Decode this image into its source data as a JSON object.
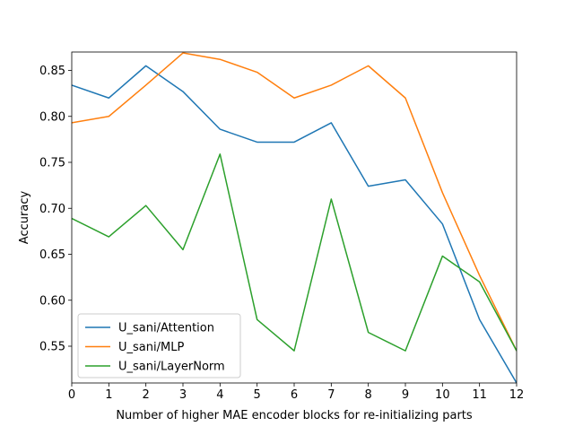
{
  "chart_data": {
    "type": "line",
    "title": "",
    "xlabel": "Number of higher MAE encoder blocks for re-initializing parts",
    "ylabel": "Accuracy",
    "x": [
      0,
      1,
      2,
      3,
      4,
      5,
      6,
      7,
      8,
      9,
      10,
      11,
      12
    ],
    "xlim": [
      0,
      12
    ],
    "ylim": [
      0.51,
      0.87
    ],
    "xticks": [
      "0",
      "1",
      "2",
      "3",
      "4",
      "5",
      "6",
      "7",
      "8",
      "9",
      "10",
      "11",
      "12"
    ],
    "yticks": [
      0.55,
      0.6,
      0.65,
      0.7,
      0.75,
      0.8,
      0.85
    ],
    "ytick_labels": [
      "0.55",
      "0.60",
      "0.65",
      "0.70",
      "0.75",
      "0.80",
      "0.85"
    ],
    "grid": false,
    "legend_position": "lower-left",
    "series": [
      {
        "name": "U_sani/Attention",
        "color": "#1f77b4",
        "values": [
          0.834,
          0.82,
          0.855,
          0.827,
          0.786,
          0.772,
          0.772,
          0.793,
          0.724,
          0.731,
          0.683,
          0.579,
          0.51
        ]
      },
      {
        "name": "U_sani/MLP",
        "color": "#ff7f0e",
        "values": [
          0.793,
          0.8,
          0.834,
          0.869,
          0.862,
          0.848,
          0.82,
          0.834,
          0.855,
          0.82,
          0.717,
          0.627,
          0.545
        ]
      },
      {
        "name": "U_sani/LayerNorm",
        "color": "#2ca02c",
        "values": [
          0.689,
          0.669,
          0.703,
          0.655,
          0.759,
          0.579,
          0.545,
          0.71,
          0.565,
          0.545,
          0.648,
          0.62,
          0.545
        ]
      }
    ]
  }
}
